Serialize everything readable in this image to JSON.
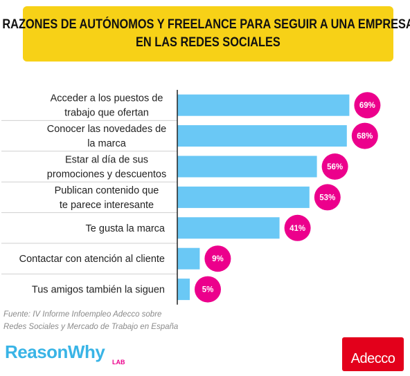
{
  "title": {
    "line1": "RAZONES DE AUTÓNOMOS Y FREELANCE PARA SEGUIR A UNA EMPRESA",
    "line2": "EN LAS REDES SOCIALES"
  },
  "source": {
    "line1": "Fuente: IV Informe Infoempleo Adecco sobre",
    "line2": "Redes Sociales y Mercado de Trabajo en España"
  },
  "logos": {
    "reasonwhy": "ReasonWhy",
    "lab": "LAB",
    "adecco": "Adecco"
  },
  "colors": {
    "bar": "#6ac8f5",
    "badge": "#ec008c",
    "title_bg": "#f7d117"
  },
  "chart_data": {
    "type": "bar",
    "orientation": "horizontal",
    "categories": [
      [
        "Acceder a los puestos de",
        "trabajo que ofertan"
      ],
      [
        "Conocer las novedades de",
        "la marca"
      ],
      [
        "Estar al día de sus",
        "promociones y descuentos"
      ],
      [
        "Publican contenido que",
        "te parece interesante"
      ],
      [
        "Te gusta la marca"
      ],
      [
        "Contactar con atención al cliente"
      ],
      [
        "Tus amigos también la siguen"
      ]
    ],
    "values": [
      69,
      68,
      56,
      53,
      41,
      9,
      5
    ],
    "value_labels": [
      "69%",
      "68%",
      "56%",
      "53%",
      "41%",
      "9%",
      "5%"
    ],
    "unit": "%",
    "xlim": [
      0,
      100
    ],
    "grid": false
  }
}
